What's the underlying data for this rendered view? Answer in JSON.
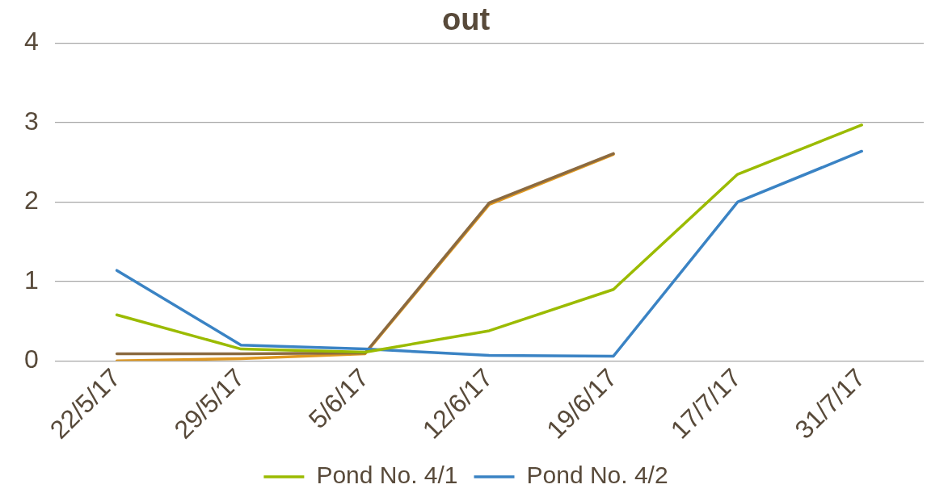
{
  "chart_data": {
    "type": "line",
    "title": "out",
    "categories": [
      "22/5/17",
      "29/5/17",
      "5/6/17",
      "12/6/17",
      "19/6/17",
      "17/7/17",
      "31/7/17"
    ],
    "series": [
      {
        "name": "Pond No. 4/1",
        "color": "#9bbb00",
        "values": [
          0.58,
          0.15,
          0.11,
          0.38,
          0.9,
          2.35,
          2.97
        ]
      },
      {
        "name": "Pond No. 4/2",
        "color": "#3a83c4",
        "values": [
          1.14,
          0.2,
          0.15,
          0.07,
          0.06,
          2.0,
          2.64
        ]
      },
      {
        "color": "#8b6a40",
        "values": [
          0.09,
          0.09,
          0.1,
          1.99,
          2.61,
          null,
          null
        ]
      },
      {
        "color": "#e0981f",
        "values": [
          0.0,
          0.03,
          0.09,
          1.97,
          2.6,
          null,
          null
        ]
      }
    ],
    "ylim": [
      0,
      4
    ],
    "yticks": [
      0,
      1,
      2,
      3,
      4
    ],
    "grid": "y",
    "legend": "bottom",
    "marker": "none",
    "line_style": "solid"
  }
}
